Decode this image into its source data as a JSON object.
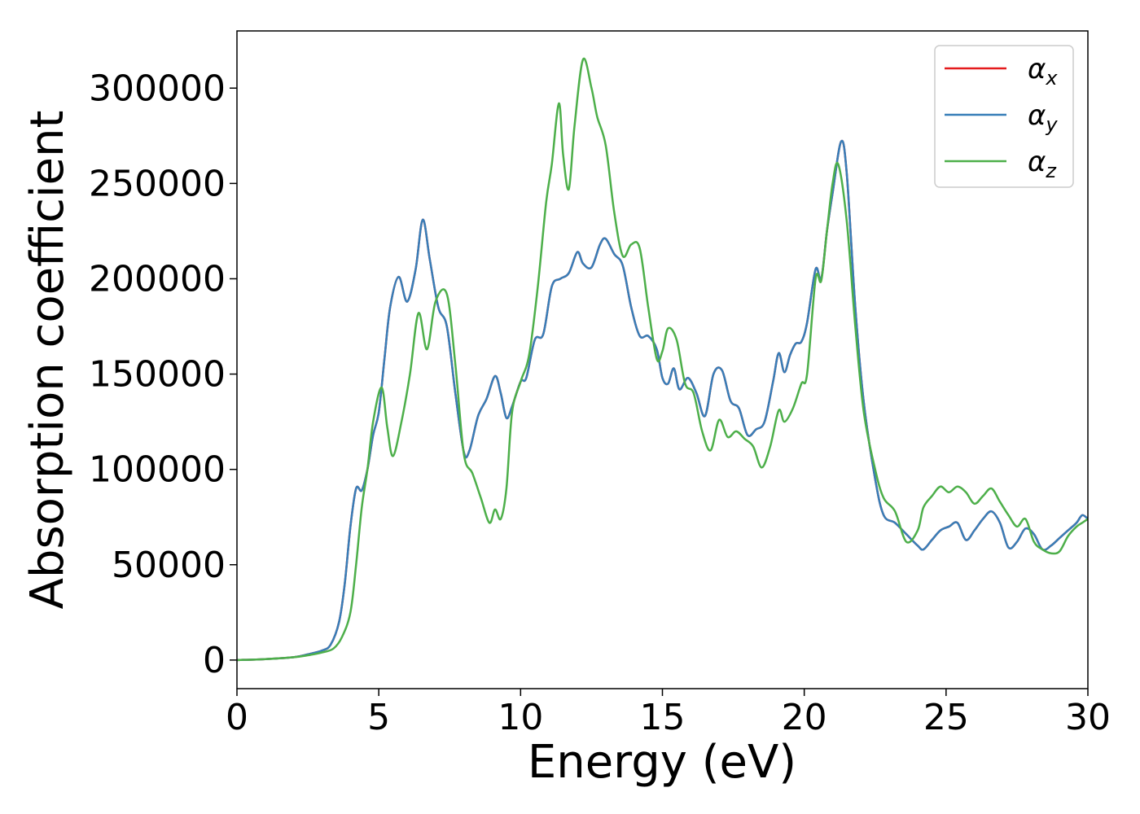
{
  "chart_data": {
    "type": "line",
    "xlabel": "Energy (eV)",
    "ylabel": "Absorption coefficient",
    "xlim": [
      0,
      30
    ],
    "ylim": [
      -15000,
      330000
    ],
    "xticks": [
      0,
      5,
      10,
      15,
      20,
      25,
      30
    ],
    "yticks": [
      0,
      50000,
      100000,
      150000,
      200000,
      250000,
      300000
    ],
    "grid": false,
    "legend_position": "top-right",
    "series": [
      {
        "name": "α",
        "subscript": "x",
        "color": "#e41a1c",
        "x": [
          0,
          1,
          2,
          2.5,
          3,
          3.3,
          3.6,
          3.8,
          4.0,
          4.2,
          4.4,
          4.6,
          4.8,
          5.0,
          5.2,
          5.4,
          5.7,
          6.0,
          6.3,
          6.55,
          6.8,
          7.1,
          7.4,
          7.7,
          8.0,
          8.2,
          8.5,
          8.8,
          9.1,
          9.3,
          9.5,
          9.7,
          10.0,
          10.2,
          10.5,
          10.8,
          11.1,
          11.4,
          11.7,
          12.0,
          12.2,
          12.5,
          12.8,
          13.0,
          13.3,
          13.6,
          13.9,
          14.2,
          14.5,
          14.8,
          15.0,
          15.2,
          15.4,
          15.6,
          15.9,
          16.2,
          16.5,
          16.8,
          17.1,
          17.4,
          17.7,
          18.0,
          18.3,
          18.6,
          18.9,
          19.1,
          19.3,
          19.5,
          19.7,
          19.9,
          20.1,
          20.4,
          20.6,
          20.8,
          21.0,
          21.3,
          21.5,
          21.8,
          22.1,
          22.5,
          22.8,
          23.2,
          23.6,
          24.0,
          24.2,
          24.5,
          24.8,
          25.1,
          25.4,
          25.7,
          26.0,
          26.3,
          26.6,
          26.9,
          27.2,
          27.5,
          27.8,
          28.1,
          28.4,
          28.7,
          29.0,
          29.3,
          29.6,
          29.8,
          30.0
        ],
        "y": [
          0,
          500,
          1500,
          3000,
          5000,
          8000,
          20000,
          40000,
          70000,
          90000,
          89000,
          100000,
          118000,
          130000,
          158000,
          185000,
          201000,
          188000,
          205000,
          231000,
          210000,
          185000,
          175000,
          140000,
          109000,
          110000,
          128000,
          137000,
          149000,
          140000,
          127000,
          133000,
          146000,
          148000,
          168000,
          171000,
          196000,
          200000,
          203000,
          214000,
          208000,
          206000,
          218000,
          221000,
          213000,
          207000,
          185000,
          170000,
          170000,
          163000,
          148000,
          145000,
          153000,
          142000,
          148000,
          140000,
          128000,
          150000,
          152000,
          136000,
          132000,
          118000,
          121000,
          125000,
          146000,
          161000,
          151000,
          160000,
          166000,
          167000,
          177000,
          205000,
          200000,
          225000,
          245000,
          272000,
          255000,
          185000,
          135000,
          95000,
          76000,
          72000,
          66000,
          60000,
          58000,
          63000,
          68000,
          70000,
          72000,
          63000,
          68000,
          74000,
          78000,
          72000,
          59000,
          62000,
          69000,
          66000,
          58000,
          60000,
          64000,
          68000,
          72000,
          76000,
          74000
        ]
      },
      {
        "name": "α",
        "subscript": "y",
        "color": "#377eb8",
        "x": [
          0,
          1,
          2,
          2.5,
          3,
          3.3,
          3.6,
          3.8,
          4.0,
          4.2,
          4.4,
          4.6,
          4.8,
          5.0,
          5.2,
          5.4,
          5.7,
          6.0,
          6.3,
          6.55,
          6.8,
          7.1,
          7.4,
          7.7,
          8.0,
          8.2,
          8.5,
          8.8,
          9.1,
          9.3,
          9.5,
          9.7,
          10.0,
          10.2,
          10.5,
          10.8,
          11.1,
          11.4,
          11.7,
          12.0,
          12.2,
          12.5,
          12.8,
          13.0,
          13.3,
          13.6,
          13.9,
          14.2,
          14.5,
          14.8,
          15.0,
          15.2,
          15.4,
          15.6,
          15.9,
          16.2,
          16.5,
          16.8,
          17.1,
          17.4,
          17.7,
          18.0,
          18.3,
          18.6,
          18.9,
          19.1,
          19.3,
          19.5,
          19.7,
          19.9,
          20.1,
          20.4,
          20.6,
          20.8,
          21.0,
          21.3,
          21.5,
          21.8,
          22.1,
          22.5,
          22.8,
          23.2,
          23.6,
          24.0,
          24.2,
          24.5,
          24.8,
          25.1,
          25.4,
          25.7,
          26.0,
          26.3,
          26.6,
          26.9,
          27.2,
          27.5,
          27.8,
          28.1,
          28.4,
          28.7,
          29.0,
          29.3,
          29.6,
          29.8,
          30.0
        ],
        "y": [
          0,
          500,
          1500,
          3000,
          5000,
          8000,
          20000,
          40000,
          70000,
          90000,
          89000,
          100000,
          118000,
          130000,
          158000,
          185000,
          201000,
          188000,
          205000,
          231000,
          210000,
          185000,
          175000,
          140000,
          109000,
          110000,
          128000,
          137000,
          149000,
          140000,
          127000,
          133000,
          146000,
          148000,
          168000,
          171000,
          196000,
          200000,
          203000,
          214000,
          208000,
          206000,
          218000,
          221000,
          213000,
          207000,
          185000,
          170000,
          170000,
          163000,
          148000,
          145000,
          153000,
          142000,
          148000,
          140000,
          128000,
          150000,
          152000,
          136000,
          132000,
          118000,
          121000,
          125000,
          146000,
          161000,
          151000,
          160000,
          166000,
          167000,
          177000,
          205000,
          200000,
          225000,
          245000,
          272000,
          255000,
          185000,
          135000,
          95000,
          76000,
          72000,
          66000,
          60000,
          58000,
          63000,
          68000,
          70000,
          72000,
          63000,
          68000,
          74000,
          78000,
          72000,
          59000,
          62000,
          69000,
          66000,
          58000,
          60000,
          64000,
          68000,
          72000,
          76000,
          74000
        ]
      },
      {
        "name": "α",
        "subscript": "z",
        "color": "#4daf4a",
        "x": [
          0,
          1,
          2,
          2.5,
          3,
          3.4,
          3.7,
          4.0,
          4.2,
          4.4,
          4.6,
          4.8,
          5.1,
          5.3,
          5.5,
          5.8,
          6.1,
          6.4,
          6.7,
          7.0,
          7.4,
          7.7,
          8.0,
          8.3,
          8.6,
          8.9,
          9.1,
          9.3,
          9.5,
          9.7,
          10.0,
          10.3,
          10.6,
          10.9,
          11.1,
          11.35,
          11.5,
          11.7,
          11.9,
          12.2,
          12.5,
          12.7,
          13.0,
          13.3,
          13.6,
          13.9,
          14.2,
          14.5,
          14.8,
          15.0,
          15.2,
          15.5,
          15.8,
          16.1,
          16.4,
          16.7,
          17.0,
          17.3,
          17.6,
          17.9,
          18.2,
          18.5,
          18.8,
          19.1,
          19.3,
          19.6,
          19.9,
          20.1,
          20.4,
          20.6,
          20.8,
          21.0,
          21.2,
          21.5,
          21.8,
          22.1,
          22.5,
          22.8,
          23.2,
          23.6,
          24.0,
          24.2,
          24.5,
          24.8,
          25.1,
          25.4,
          25.7,
          26.0,
          26.3,
          26.6,
          26.9,
          27.2,
          27.5,
          27.8,
          28.1,
          28.4,
          28.7,
          29.0,
          29.3,
          29.6,
          29.8,
          30.0
        ],
        "y": [
          0,
          500,
          1500,
          2500,
          4000,
          6000,
          12000,
          25000,
          50000,
          80000,
          100000,
          125000,
          143000,
          122000,
          107000,
          125000,
          150000,
          182000,
          163000,
          188000,
          192000,
          155000,
          108000,
          98000,
          85000,
          72000,
          79000,
          74000,
          90000,
          130000,
          146000,
          160000,
          195000,
          240000,
          260000,
          292000,
          265000,
          247000,
          280000,
          315000,
          300000,
          285000,
          270000,
          235000,
          212000,
          218000,
          216000,
          185000,
          158000,
          162000,
          174000,
          168000,
          145000,
          140000,
          120000,
          110000,
          126000,
          117000,
          120000,
          116000,
          112000,
          101000,
          112000,
          131000,
          125000,
          132000,
          145000,
          150000,
          200000,
          199000,
          225000,
          250000,
          260000,
          230000,
          175000,
          130000,
          100000,
          85000,
          78000,
          62000,
          68000,
          80000,
          86000,
          91000,
          88000,
          91000,
          88000,
          82000,
          86000,
          90000,
          83000,
          76000,
          70000,
          74000,
          62000,
          58000,
          56000,
          57000,
          65000,
          70000,
          72000,
          74000
        ]
      }
    ]
  }
}
